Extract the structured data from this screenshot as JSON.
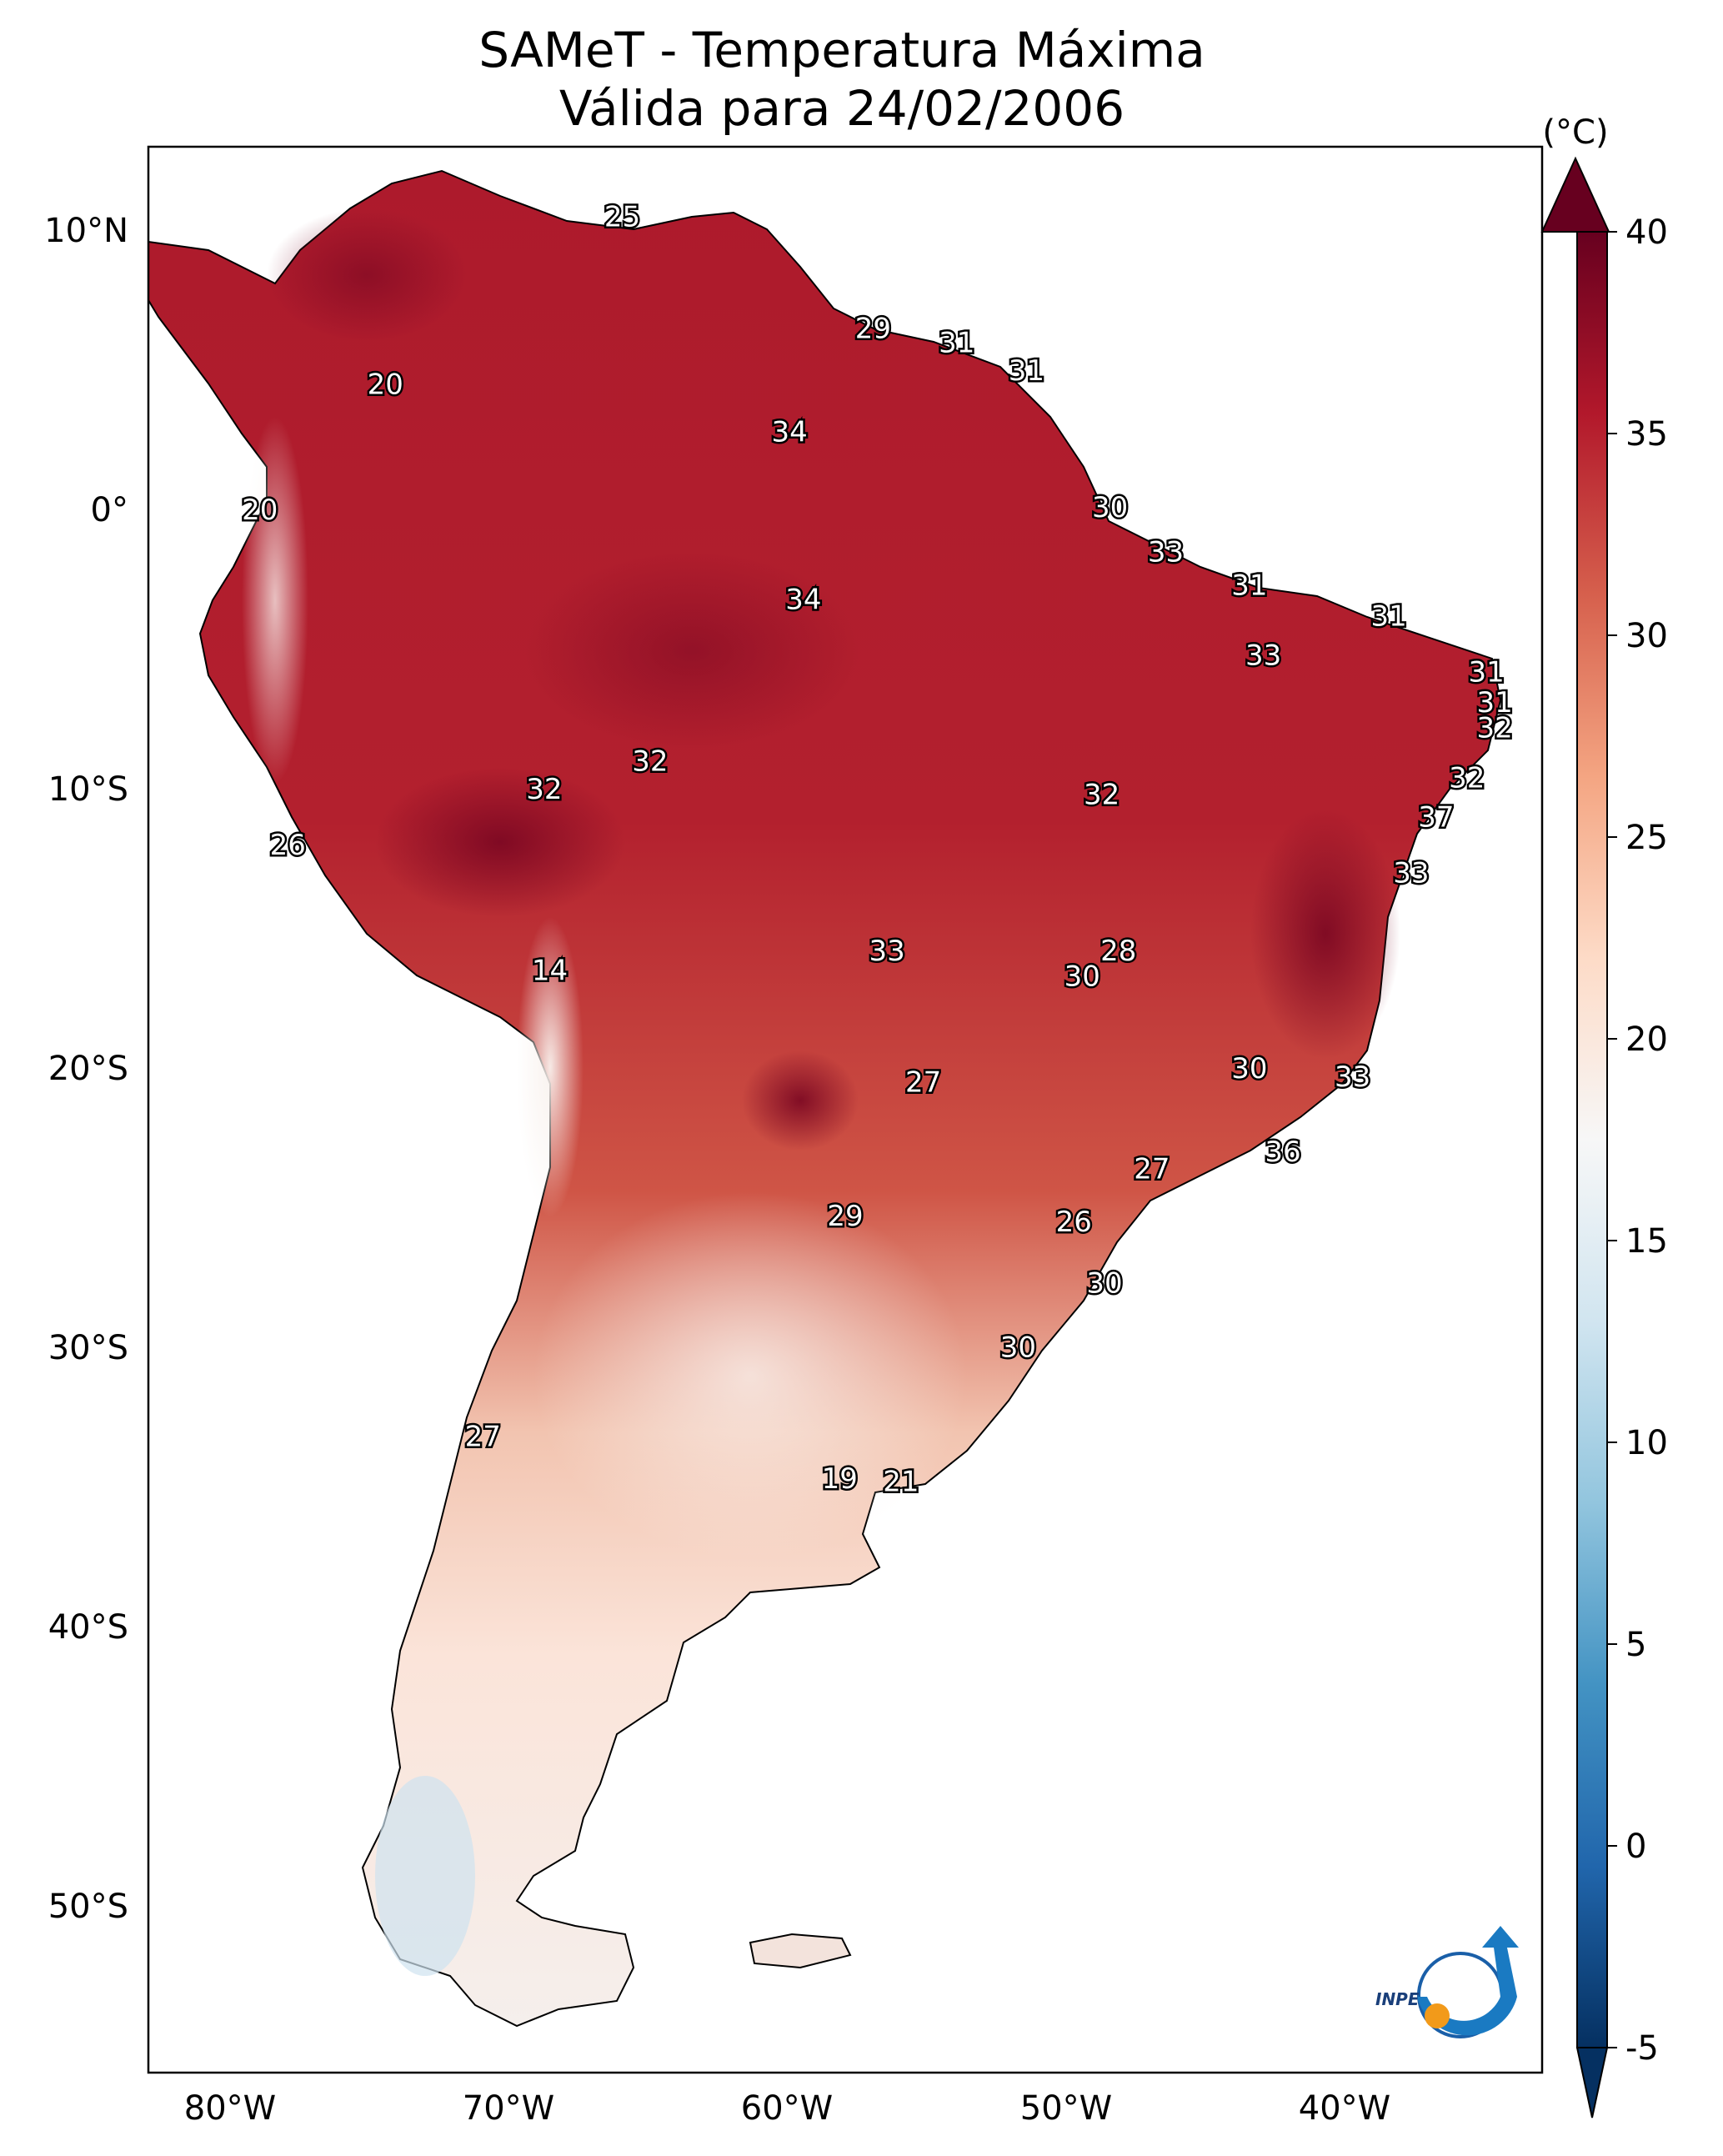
{
  "title_line1": "SAMeT - Temperatura Máxima",
  "title_line2": "Válida para 24/02/2006",
  "colorbar": {
    "unit_label": "(°C)",
    "min": -5,
    "max": 40,
    "ticks": [
      "40",
      "35",
      "30",
      "25",
      "20",
      "15",
      "10",
      "5",
      "0",
      "-5"
    ],
    "colors": [
      "#053061",
      "#2166ac",
      "#4393c3",
      "#92c5de",
      "#d1e5f0",
      "#f7f7f7",
      "#fddbc7",
      "#f4a582",
      "#d6604d",
      "#b2182b",
      "#67001f"
    ]
  },
  "axes": {
    "lon_labels": [
      "80°W",
      "70°W",
      "60°W",
      "50°W",
      "40°W"
    ],
    "lat_labels": [
      "10°N",
      "0°",
      "10°S",
      "20°S",
      "30°S",
      "40°S",
      "50°S"
    ],
    "lon_range": [
      -83,
      -33
    ],
    "lat_range": [
      -56,
      13
    ]
  },
  "station_labels": [
    {
      "text": "25",
      "lon": -66,
      "lat": 10.5
    },
    {
      "text": "20",
      "lon": -74.5,
      "lat": 4.5
    },
    {
      "text": "29",
      "lon": -57,
      "lat": 6.5
    },
    {
      "text": "31",
      "lon": -54,
      "lat": 6
    },
    {
      "text": "31",
      "lon": -51.5,
      "lat": 5
    },
    {
      "text": "34",
      "lon": -60,
      "lat": 2.8
    },
    {
      "text": "20",
      "lon": -79,
      "lat": 0
    },
    {
      "text": "30",
      "lon": -48.5,
      "lat": 0.1
    },
    {
      "text": "33",
      "lon": -46.5,
      "lat": -1.5
    },
    {
      "text": "34",
      "lon": -59.5,
      "lat": -3.2
    },
    {
      "text": "31",
      "lon": -43.5,
      "lat": -2.7
    },
    {
      "text": "31",
      "lon": -38.5,
      "lat": -3.8
    },
    {
      "text": "33",
      "lon": -43,
      "lat": -5.2
    },
    {
      "text": "31",
      "lon": -35,
      "lat": -5.8
    },
    {
      "text": "31",
      "lon": -34.7,
      "lat": -6.9
    },
    {
      "text": "32",
      "lon": -34.7,
      "lat": -7.8
    },
    {
      "text": "32",
      "lon": -65,
      "lat": -9
    },
    {
      "text": "32",
      "lon": -68.8,
      "lat": -10
    },
    {
      "text": "32",
      "lon": -48.8,
      "lat": -10.2
    },
    {
      "text": "32",
      "lon": -35.7,
      "lat": -9.6
    },
    {
      "text": "37",
      "lon": -36.8,
      "lat": -11
    },
    {
      "text": "26",
      "lon": -78,
      "lat": -12
    },
    {
      "text": "33",
      "lon": -37.7,
      "lat": -13
    },
    {
      "text": "14",
      "lon": -68.6,
      "lat": -16.5
    },
    {
      "text": "33",
      "lon": -56.5,
      "lat": -15.8
    },
    {
      "text": "28",
      "lon": -48.2,
      "lat": -15.8
    },
    {
      "text": "30",
      "lon": -49.5,
      "lat": -16.7
    },
    {
      "text": "30",
      "lon": -43.5,
      "lat": -20
    },
    {
      "text": "27",
      "lon": -55.2,
      "lat": -20.5
    },
    {
      "text": "33",
      "lon": -39.8,
      "lat": -20.3
    },
    {
      "text": "36",
      "lon": -42.3,
      "lat": -23
    },
    {
      "text": "27",
      "lon": -47,
      "lat": -23.6
    },
    {
      "text": "29",
      "lon": -58,
      "lat": -25.3
    },
    {
      "text": "26",
      "lon": -49.8,
      "lat": -25.5
    },
    {
      "text": "30",
      "lon": -48.7,
      "lat": -27.7
    },
    {
      "text": "30",
      "lon": -51.8,
      "lat": -30
    },
    {
      "text": "27",
      "lon": -71,
      "lat": -33.2
    },
    {
      "text": "19",
      "lon": -58.2,
      "lat": -34.7
    },
    {
      "text": "21",
      "lon": -56,
      "lat": -34.8
    }
  ],
  "logo": {
    "text": "INPE"
  }
}
